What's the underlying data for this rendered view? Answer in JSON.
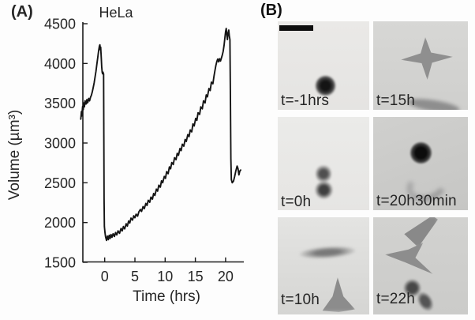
{
  "panel_a": {
    "label": "(A)",
    "title": "HeLa",
    "xlabel": "Time (hrs)",
    "ylabel": "Volume (µm³)"
  },
  "panel_b": {
    "label": "(B)",
    "tiles": [
      {
        "label": "t=-1hrs"
      },
      {
        "label": "t=15h"
      },
      {
        "label": "t=0h"
      },
      {
        "label": "t=20h30min"
      },
      {
        "label": "t=10h"
      },
      {
        "label": "t=22h"
      }
    ]
  },
  "chart_data": {
    "type": "line",
    "title": "HeLa",
    "xlabel": "Time (hrs)",
    "ylabel": "Volume (µm³)",
    "xlim": [
      -4,
      23
    ],
    "ylim": [
      1500,
      4500
    ],
    "xticks": [
      0,
      5,
      10,
      15,
      20
    ],
    "yticks": [
      1500,
      2000,
      2500,
      3000,
      3500,
      4000,
      4500
    ],
    "grid": false,
    "legend": "none",
    "line_color": "#141414",
    "series": [
      {
        "name": "volume",
        "points": [
          [
            -3.95,
            3300
          ],
          [
            -3.85,
            3395
          ],
          [
            -3.78,
            3340
          ],
          [
            -3.65,
            3460
          ],
          [
            -3.55,
            3420
          ],
          [
            -3.45,
            3505
          ],
          [
            -3.35,
            3455
          ],
          [
            -3.25,
            3530
          ],
          [
            -3.1,
            3490
          ],
          [
            -2.95,
            3545
          ],
          [
            -2.8,
            3510
          ],
          [
            -2.65,
            3560
          ],
          [
            -2.5,
            3530
          ],
          [
            -2.35,
            3575
          ],
          [
            -2.2,
            3600
          ],
          [
            -2.05,
            3645
          ],
          [
            -1.9,
            3695
          ],
          [
            -1.75,
            3755
          ],
          [
            -1.6,
            3825
          ],
          [
            -1.45,
            3900
          ],
          [
            -1.3,
            3985
          ],
          [
            -1.15,
            4075
          ],
          [
            -1.0,
            4160
          ],
          [
            -0.88,
            4220
          ],
          [
            -0.8,
            4235
          ],
          [
            -0.72,
            4170
          ],
          [
            -0.66,
            4205
          ],
          [
            -0.58,
            4080
          ],
          [
            -0.5,
            3960
          ],
          [
            -0.42,
            3890
          ],
          [
            -0.35,
            3870
          ],
          [
            -0.28,
            3890
          ],
          [
            -0.22,
            3865
          ],
          [
            -0.18,
            3870
          ],
          [
            -0.15,
            3100
          ],
          [
            -0.1,
            2300
          ],
          [
            -0.05,
            1950
          ],
          [
            0.05,
            1870
          ],
          [
            0.15,
            1820
          ],
          [
            0.3,
            1775
          ],
          [
            0.45,
            1830
          ],
          [
            0.6,
            1785
          ],
          [
            0.75,
            1840
          ],
          [
            0.9,
            1800
          ],
          [
            1.05,
            1850
          ],
          [
            1.2,
            1815
          ],
          [
            1.4,
            1860
          ],
          [
            1.6,
            1825
          ],
          [
            1.8,
            1875
          ],
          [
            2.0,
            1845
          ],
          [
            2.2,
            1895
          ],
          [
            2.45,
            1865
          ],
          [
            2.7,
            1925
          ],
          [
            2.9,
            1895
          ],
          [
            3.1,
            1950
          ],
          [
            3.3,
            1920
          ],
          [
            3.55,
            1985
          ],
          [
            3.75,
            1955
          ],
          [
            3.95,
            2020
          ],
          [
            4.15,
            1995
          ],
          [
            4.35,
            2055
          ],
          [
            4.6,
            2030
          ],
          [
            4.8,
            2085
          ],
          [
            5.0,
            2060
          ],
          [
            5.2,
            2105
          ],
          [
            5.45,
            2080
          ],
          [
            5.65,
            2135
          ],
          [
            5.9,
            2165
          ],
          [
            6.1,
            2140
          ],
          [
            6.35,
            2200
          ],
          [
            6.55,
            2175
          ],
          [
            6.8,
            2240
          ],
          [
            7.0,
            2215
          ],
          [
            7.2,
            2280
          ],
          [
            7.45,
            2255
          ],
          [
            7.65,
            2320
          ],
          [
            7.9,
            2295
          ],
          [
            8.1,
            2365
          ],
          [
            8.3,
            2340
          ],
          [
            8.55,
            2420
          ],
          [
            8.75,
            2395
          ],
          [
            8.95,
            2470
          ],
          [
            9.2,
            2445
          ],
          [
            9.4,
            2525
          ],
          [
            9.6,
            2500
          ],
          [
            9.85,
            2580
          ],
          [
            10.05,
            2555
          ],
          [
            10.25,
            2640
          ],
          [
            10.5,
            2615
          ],
          [
            10.7,
            2700
          ],
          [
            10.9,
            2675
          ],
          [
            11.1,
            2755
          ],
          [
            11.35,
            2730
          ],
          [
            11.55,
            2815
          ],
          [
            11.8,
            2790
          ],
          [
            12.0,
            2870
          ],
          [
            12.2,
            2845
          ],
          [
            12.45,
            2930
          ],
          [
            12.65,
            2905
          ],
          [
            12.85,
            2985
          ],
          [
            13.1,
            2960
          ],
          [
            13.3,
            3045
          ],
          [
            13.5,
            3020
          ],
          [
            13.75,
            3105
          ],
          [
            13.95,
            3080
          ],
          [
            14.15,
            3165
          ],
          [
            14.4,
            3140
          ],
          [
            14.6,
            3240
          ],
          [
            14.8,
            3215
          ],
          [
            15.05,
            3310
          ],
          [
            15.25,
            3285
          ],
          [
            15.45,
            3380
          ],
          [
            15.7,
            3360
          ],
          [
            15.9,
            3455
          ],
          [
            16.15,
            3430
          ],
          [
            16.35,
            3530
          ],
          [
            16.6,
            3505
          ],
          [
            16.8,
            3605
          ],
          [
            17.0,
            3580
          ],
          [
            17.25,
            3685
          ],
          [
            17.45,
            3660
          ],
          [
            17.65,
            3765
          ],
          [
            17.9,
            3745
          ],
          [
            18.1,
            3845
          ],
          [
            18.25,
            3915
          ],
          [
            18.4,
            3975
          ],
          [
            18.55,
            4025
          ],
          [
            18.7,
            4055
          ],
          [
            18.85,
            4020
          ],
          [
            19.0,
            4060
          ],
          [
            19.15,
            4030
          ],
          [
            19.3,
            4065
          ],
          [
            19.45,
            4105
          ],
          [
            19.6,
            4150
          ],
          [
            19.75,
            4230
          ],
          [
            19.9,
            4330
          ],
          [
            20.0,
            4400
          ],
          [
            20.1,
            4440
          ],
          [
            20.2,
            4370
          ],
          [
            20.3,
            4300
          ],
          [
            20.42,
            4385
          ],
          [
            20.52,
            4420
          ],
          [
            20.62,
            4350
          ],
          [
            20.72,
            4300
          ],
          [
            20.8,
            3600
          ],
          [
            20.87,
            2800
          ],
          [
            20.95,
            2540
          ],
          [
            21.1,
            2500
          ],
          [
            21.3,
            2520
          ],
          [
            21.5,
            2580
          ],
          [
            21.7,
            2650
          ],
          [
            21.9,
            2710
          ],
          [
            22.05,
            2680
          ],
          [
            22.2,
            2600
          ],
          [
            22.35,
            2645
          ],
          [
            22.5,
            2660
          ]
        ]
      }
    ]
  }
}
